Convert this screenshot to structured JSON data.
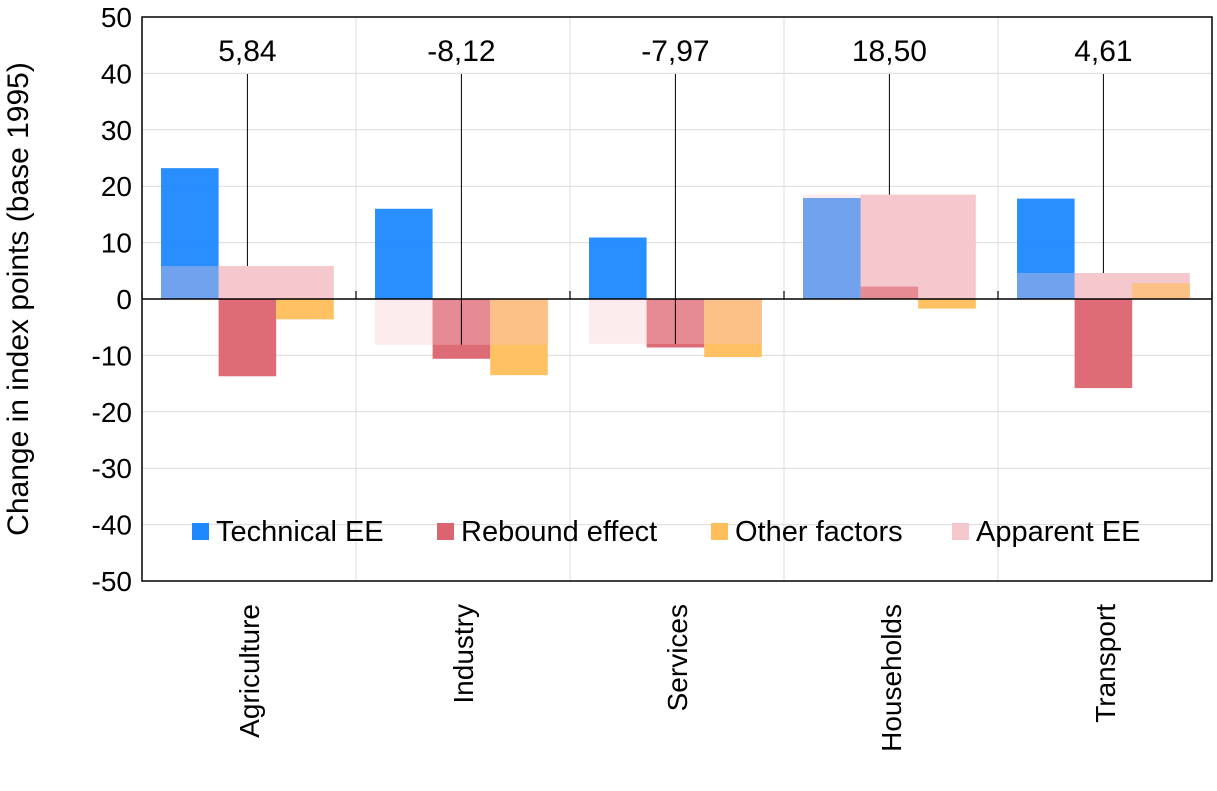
{
  "chart_data": {
    "type": "bar",
    "ylabel": "Change in index points (base 1995)",
    "xlabel": "",
    "ylim": [
      -50,
      50
    ],
    "ytick_step": 10,
    "grid": true,
    "legend_position": "lower inside",
    "categories": [
      "Agriculture",
      "Industry",
      "Services",
      "Households",
      "Transport"
    ],
    "series": [
      {
        "name": "Technical EE",
        "color": "#1E88FF",
        "values": [
          23.2,
          16.0,
          10.9,
          17.9,
          17.8
        ]
      },
      {
        "name": "Rebound effect",
        "color": "#DC6470",
        "values": [
          -13.7,
          -10.6,
          -8.6,
          2.2,
          -15.8
        ]
      },
      {
        "name": "Other factors",
        "color": "#FFBE5A",
        "values": [
          -3.6,
          -13.5,
          -10.3,
          -1.7,
          2.8
        ]
      },
      {
        "name": "Apparent EE",
        "color": "#F5C8CE",
        "values": [
          5.84,
          -8.12,
          -7.97,
          18.5,
          4.61
        ]
      }
    ],
    "annotations": [
      "5,84",
      "-8,12",
      "-7,97",
      "18,50",
      "4,61"
    ],
    "tick_labels": [
      "50",
      "40",
      "30",
      "20",
      "10",
      "0",
      "-10",
      "-20",
      "-30",
      "-40",
      "-50"
    ]
  }
}
